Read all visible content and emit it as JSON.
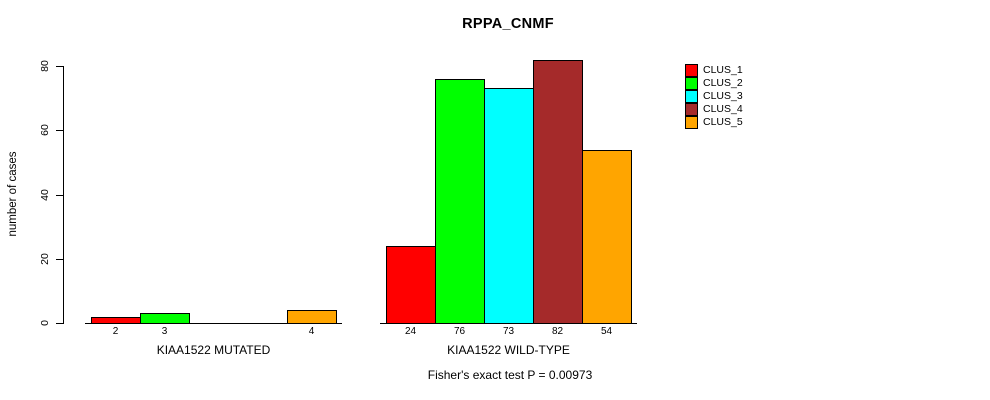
{
  "chart_data": {
    "type": "bar",
    "title": "RPPA_CNMF",
    "ylabel": "number of cases",
    "ylim": [
      0,
      80
    ],
    "yticks": [
      0,
      20,
      40,
      60,
      80
    ],
    "grid": false,
    "series_colors": [
      "#FF0000",
      "#00FF00",
      "#00FFFF",
      "#A52A2A",
      "#FFA500"
    ],
    "groups": [
      {
        "label": "KIAA1522 MUTATED",
        "values": [
          2,
          3,
          0,
          0,
          4
        ],
        "bar_labels": [
          "2",
          "3",
          "",
          "",
          "4"
        ]
      },
      {
        "label": "KIAA1522 WILD-TYPE",
        "values": [
          24,
          76,
          73,
          82,
          54
        ],
        "bar_labels": [
          "24",
          "76",
          "73",
          "82",
          "54"
        ]
      }
    ],
    "legend": {
      "position": "right",
      "entries": [
        {
          "label": "CLUS_1",
          "color": "#FF0000"
        },
        {
          "label": "CLUS_2",
          "color": "#00FF00"
        },
        {
          "label": "CLUS_3",
          "color": "#00FFFF"
        },
        {
          "label": "CLUS_4",
          "color": "#A52A2A"
        },
        {
          "label": "CLUS_5",
          "color": "#FFA500"
        }
      ]
    },
    "footnote": "Fisher's exact test P = 0.00973"
  }
}
